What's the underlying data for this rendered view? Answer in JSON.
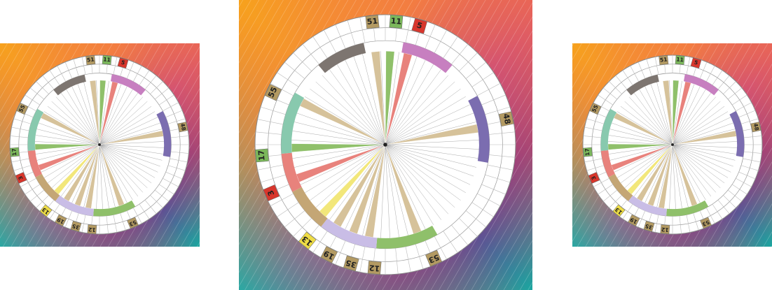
{
  "wheel": {
    "gates": [
      {
        "label": "51",
        "color": "#b39a62"
      },
      {
        "label": "11",
        "color": "#7bb75b"
      },
      {
        "label": "5",
        "color": "#d8362c"
      },
      {
        "label": "48",
        "color": "#b39a62"
      },
      {
        "label": "55",
        "color": "#b39a62"
      },
      {
        "label": "17",
        "color": "#7bb75b"
      },
      {
        "label": "3",
        "color": "#d8362c"
      },
      {
        "label": "13",
        "color": "#eedc45"
      },
      {
        "label": "19",
        "color": "#b39a62"
      },
      {
        "label": "35",
        "color": "#b39a62"
      },
      {
        "label": "12",
        "color": "#b39a62"
      },
      {
        "label": "53",
        "color": "#b39a62"
      }
    ]
  }
}
